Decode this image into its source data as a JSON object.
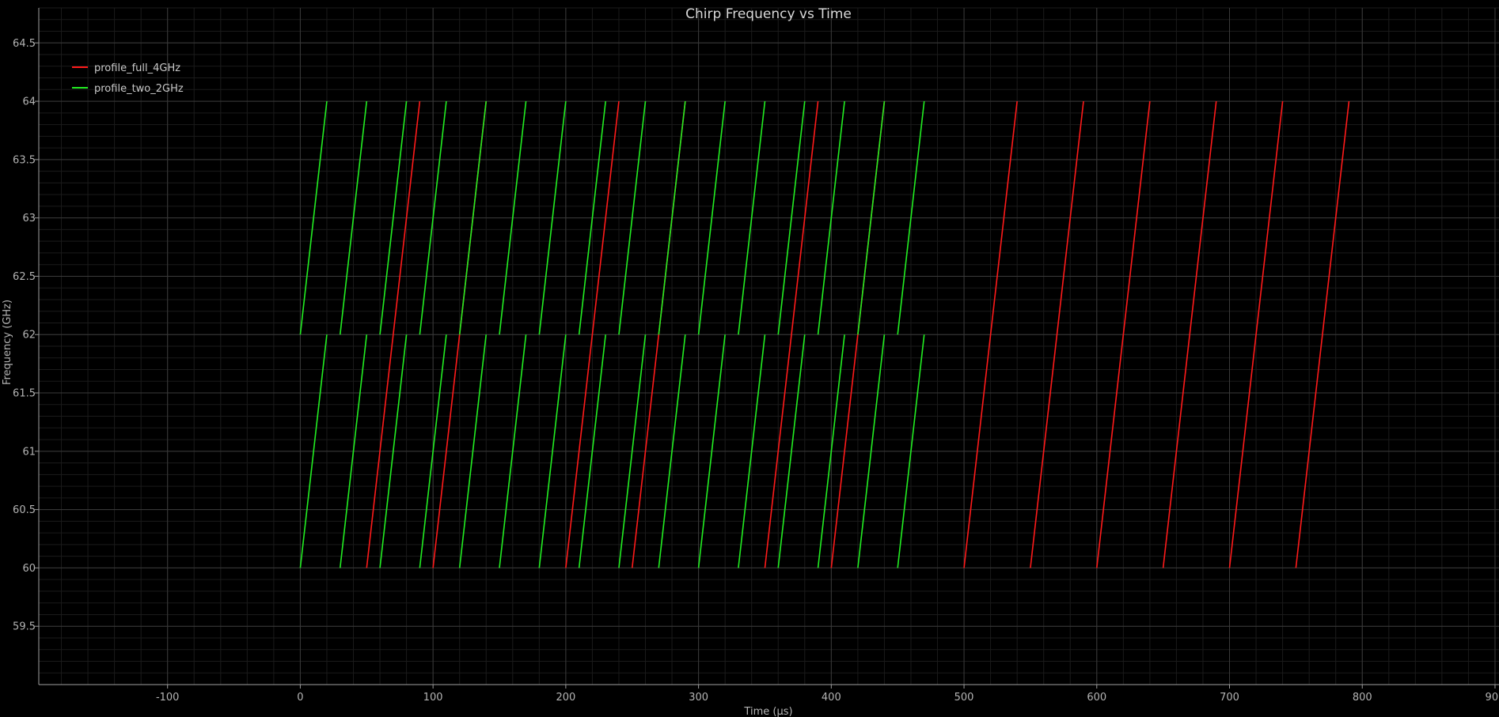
{
  "chart_data": {
    "type": "line",
    "title": "Chirp Frequency vs Time",
    "xlabel": "Time (µs)",
    "ylabel": "Frequency (GHz)",
    "xlim": [
      -197,
      903
    ],
    "ylim": [
      59.0,
      64.8
    ],
    "xticks": [
      -100,
      0,
      100,
      200,
      300,
      400,
      500,
      600,
      700,
      800,
      900
    ],
    "yticks": [
      59.5,
      60,
      60.5,
      61,
      61.5,
      62,
      62.5,
      63,
      63.5,
      64,
      64.5
    ],
    "grid": true,
    "legend_position": "top-left",
    "series": [
      {
        "name": "profile_full_4GHz",
        "color": "#ff1a1a",
        "chirp_duration_us": 40,
        "segments": [
          {
            "start_us": 50,
            "f_start": 60,
            "f_end": 64
          },
          {
            "start_us": 100,
            "f_start": 60,
            "f_end": 64
          },
          {
            "start_us": 200,
            "f_start": 60,
            "f_end": 64
          },
          {
            "start_us": 250,
            "f_start": 60,
            "f_end": 64
          },
          {
            "start_us": 350,
            "f_start": 60,
            "f_end": 64
          },
          {
            "start_us": 400,
            "f_start": 60,
            "f_end": 64
          },
          {
            "start_us": 500,
            "f_start": 60,
            "f_end": 64
          },
          {
            "start_us": 550,
            "f_start": 60,
            "f_end": 64
          },
          {
            "start_us": 600,
            "f_start": 60,
            "f_end": 64
          },
          {
            "start_us": 650,
            "f_start": 60,
            "f_end": 64
          },
          {
            "start_us": 700,
            "f_start": 60,
            "f_end": 64
          },
          {
            "start_us": 750,
            "f_start": 60,
            "f_end": 64
          }
        ]
      },
      {
        "name": "profile_two_2GHz",
        "color": "#22ee22",
        "chirp_duration_us": 20,
        "segments": [
          {
            "start_us": 0,
            "f_start": 60,
            "f_end": 62
          },
          {
            "start_us": 0,
            "f_start": 62,
            "f_end": 64
          },
          {
            "start_us": 30,
            "f_start": 60,
            "f_end": 62
          },
          {
            "start_us": 30,
            "f_start": 62,
            "f_end": 64
          },
          {
            "start_us": 60,
            "f_start": 60,
            "f_end": 62
          },
          {
            "start_us": 60,
            "f_start": 62,
            "f_end": 64
          },
          {
            "start_us": 90,
            "f_start": 60,
            "f_end": 62
          },
          {
            "start_us": 90,
            "f_start": 62,
            "f_end": 64
          },
          {
            "start_us": 120,
            "f_start": 60,
            "f_end": 62
          },
          {
            "start_us": 120,
            "f_start": 62,
            "f_end": 64
          },
          {
            "start_us": 150,
            "f_start": 60,
            "f_end": 62
          },
          {
            "start_us": 150,
            "f_start": 62,
            "f_end": 64
          },
          {
            "start_us": 180,
            "f_start": 60,
            "f_end": 62
          },
          {
            "start_us": 180,
            "f_start": 62,
            "f_end": 64
          },
          {
            "start_us": 210,
            "f_start": 60,
            "f_end": 62
          },
          {
            "start_us": 210,
            "f_start": 62,
            "f_end": 64
          },
          {
            "start_us": 240,
            "f_start": 60,
            "f_end": 62
          },
          {
            "start_us": 240,
            "f_start": 62,
            "f_end": 64
          },
          {
            "start_us": 270,
            "f_start": 60,
            "f_end": 62
          },
          {
            "start_us": 270,
            "f_start": 62,
            "f_end": 64
          },
          {
            "start_us": 300,
            "f_start": 60,
            "f_end": 62
          },
          {
            "start_us": 300,
            "f_start": 62,
            "f_end": 64
          },
          {
            "start_us": 330,
            "f_start": 60,
            "f_end": 62
          },
          {
            "start_us": 330,
            "f_start": 62,
            "f_end": 64
          },
          {
            "start_us": 360,
            "f_start": 60,
            "f_end": 62
          },
          {
            "start_us": 360,
            "f_start": 62,
            "f_end": 64
          },
          {
            "start_us": 390,
            "f_start": 60,
            "f_end": 62
          },
          {
            "start_us": 390,
            "f_start": 62,
            "f_end": 64
          },
          {
            "start_us": 420,
            "f_start": 60,
            "f_end": 62
          },
          {
            "start_us": 420,
            "f_start": 62,
            "f_end": 64
          },
          {
            "start_us": 450,
            "f_start": 60,
            "f_end": 62
          },
          {
            "start_us": 450,
            "f_start": 62,
            "f_end": 64
          }
        ]
      }
    ]
  }
}
